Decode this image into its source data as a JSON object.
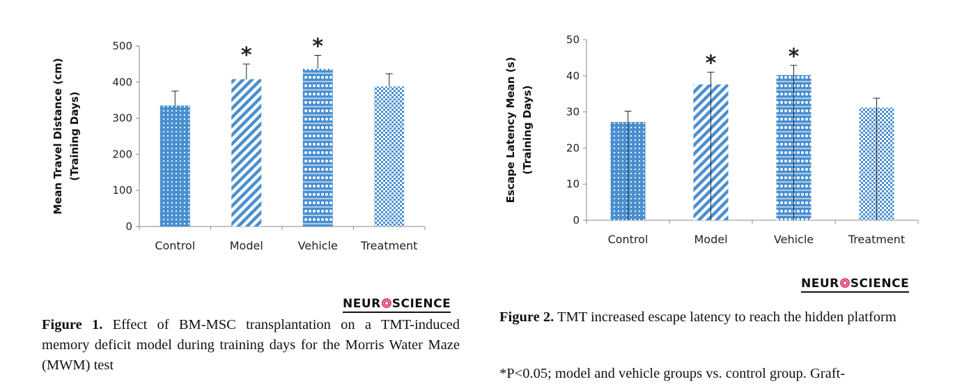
{
  "chart_data": [
    {
      "type": "bar",
      "title": "",
      "ylabel_line1": "Mean Travel Distance (cm)",
      "ylabel_line2": "(Training Days)",
      "categories": [
        "Control",
        "Model",
        "Vehicle",
        "Treatment"
      ],
      "values": [
        335,
        408,
        437,
        388
      ],
      "errors": [
        40,
        42,
        37,
        35
      ],
      "significance": [
        "",
        "*",
        "*",
        ""
      ],
      "patterns": [
        "dots",
        "diagonal",
        "grid",
        "checker"
      ],
      "ylim": [
        0,
        500
      ],
      "yticks": [
        0,
        100,
        200,
        300,
        400,
        500
      ],
      "color": "#4a8fd0"
    },
    {
      "type": "bar",
      "title": "",
      "ylabel_line1": "Escape Latency Mean (s)",
      "ylabel_line2": "(Training Days)",
      "categories": [
        "Control",
        "Model",
        "Vehicle",
        "Treatment"
      ],
      "values": [
        27.2,
        37.6,
        40.2,
        31.2
      ],
      "errors": [
        3.0,
        3.4,
        2.7,
        2.6
      ],
      "significance": [
        "",
        "*",
        "*",
        ""
      ],
      "patterns": [
        "dots",
        "diagonal",
        "grid",
        "checker"
      ],
      "ylim": [
        0,
        50
      ],
      "yticks": [
        0,
        10,
        20,
        30,
        40,
        50
      ],
      "color": "#4a8fd0"
    }
  ],
  "logos": {
    "text_left": "NEUR",
    "text_right": "SCIENCE"
  },
  "figure1": {
    "label": "Figure 1.",
    "text": " Effect of BM-MSC transplantation on a TMT-induced memory deficit model during training days for the Morris Water Maze (MWM) test"
  },
  "figure2": {
    "label": "Figure 2.",
    "text": " TMT increased escape latency to reach the hidden platform",
    "note": "*P<0.05; model and vehicle groups vs. control group. Graft-"
  }
}
